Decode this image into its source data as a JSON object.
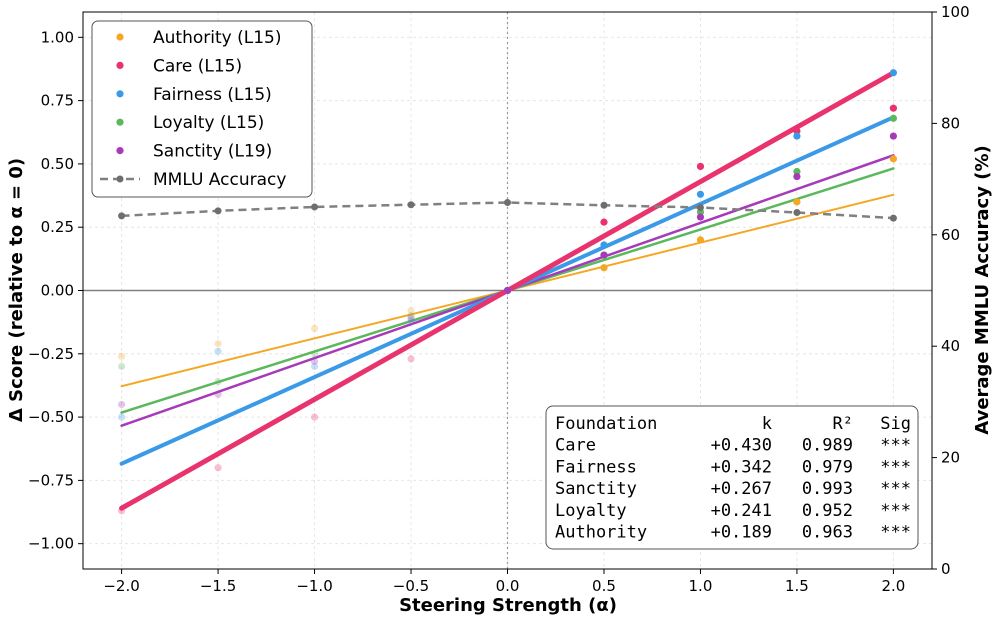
{
  "chart_data": {
    "type": "scatter",
    "xlabel": "Steering Strength (α)",
    "ylabel": "Δ Score (relative to α = 0)",
    "y2label": "Average MMLU Accuracy (%)",
    "xlim": [
      -2.2,
      2.2
    ],
    "ylim": [
      -1.1,
      1.1
    ],
    "y2lim": [
      0,
      100
    ],
    "xticks": [
      "−2.0",
      "−1.5",
      "−1.0",
      "−0.5",
      "0.0",
      "0.5",
      "1.0",
      "1.5",
      "2.0"
    ],
    "yticks": [
      "−1.00",
      "−0.75",
      "−0.50",
      "−0.25",
      "0.00",
      "0.25",
      "0.50",
      "0.75",
      "1.00"
    ],
    "y2ticks": [
      "0",
      "20",
      "40",
      "60",
      "80",
      "100"
    ],
    "grid": true,
    "legend_position": "top-left",
    "x": [
      -2.0,
      -1.5,
      -1.0,
      -0.5,
      0.0,
      0.5,
      1.0,
      1.5,
      2.0
    ],
    "series": [
      {
        "name": "Authority (L15)",
        "color": "#f5a623",
        "k": 0.189,
        "lw": 2,
        "values": [
          -0.26,
          -0.21,
          -0.15,
          -0.08,
          0.0,
          0.09,
          0.2,
          0.35,
          0.52
        ]
      },
      {
        "name": "Care (L15)",
        "color": "#e8336d",
        "k": 0.43,
        "lw": 5,
        "values": [
          -0.87,
          -0.7,
          -0.5,
          -0.27,
          0.0,
          0.27,
          0.49,
          0.63,
          0.72
        ]
      },
      {
        "name": "Fairness (L15)",
        "color": "#3a9ae8",
        "k": 0.342,
        "lw": 4,
        "values": [
          -0.5,
          -0.24,
          -0.3,
          -0.12,
          0.0,
          0.18,
          0.38,
          0.61,
          0.86
        ]
      },
      {
        "name": "Loyalty (L15)",
        "color": "#5cb85c",
        "k": 0.241,
        "lw": 2.5,
        "values": [
          -0.3,
          -0.36,
          -0.25,
          -0.1,
          0.0,
          0.14,
          0.31,
          0.47,
          0.68
        ]
      },
      {
        "name": "Sanctity (L19)",
        "color": "#a63ab8",
        "k": 0.267,
        "lw": 2.5,
        "values": [
          -0.45,
          -0.41,
          -0.28,
          -0.11,
          0.0,
          0.14,
          0.29,
          0.45,
          0.61
        ]
      }
    ],
    "mmlu": {
      "name": "MMLU Accuracy",
      "color": "#808080",
      "values": [
        63.4,
        64.3,
        65.0,
        65.4,
        65.8,
        65.3,
        64.9,
        64.0,
        63.0
      ]
    },
    "stats_table": {
      "headers": [
        "Foundation",
        "k",
        "R²",
        "Sig"
      ],
      "rows": [
        [
          "Care",
          "+0.430",
          "0.989",
          "***"
        ],
        [
          "Fairness",
          "+0.342",
          "0.979",
          "***"
        ],
        [
          "Sanctity",
          "+0.267",
          "0.993",
          "***"
        ],
        [
          "Loyalty",
          "+0.241",
          "0.952",
          "***"
        ],
        [
          "Authority",
          "+0.189",
          "0.963",
          "***"
        ]
      ]
    }
  }
}
